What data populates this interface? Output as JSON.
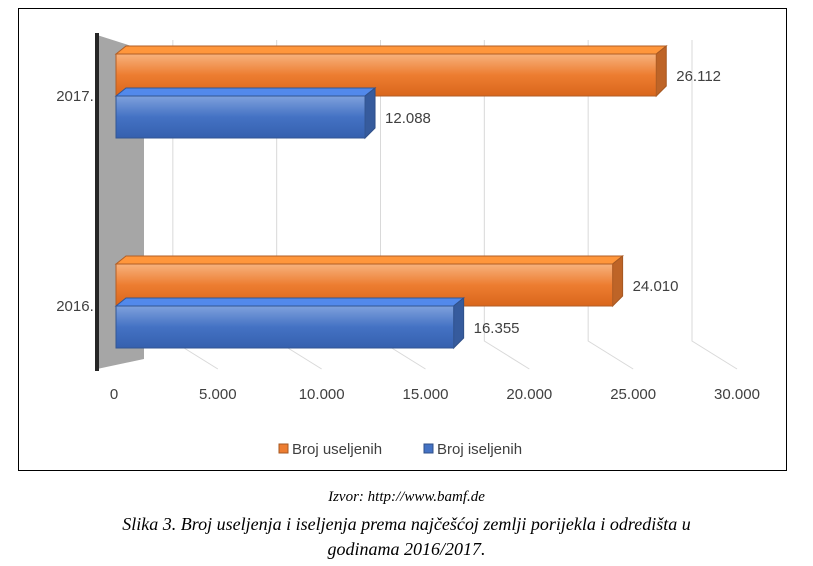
{
  "chart_data": {
    "type": "bar",
    "orientation": "horizontal",
    "style": "3d",
    "categories": [
      "2017.",
      "2016."
    ],
    "series": [
      {
        "name": "Broj useljenih",
        "values": [
          26112,
          24010
        ]
      },
      {
        "name": "Broj iseljenih",
        "values": [
          12088,
          16355
        ]
      }
    ],
    "value_labels": [
      [
        "26.112",
        "24.010"
      ],
      [
        "12.088",
        "16.355"
      ]
    ],
    "xlim": [
      0,
      30000
    ],
    "x_ticks": [
      {
        "value": 0,
        "label": "0"
      },
      {
        "value": 5000,
        "label": "5.000"
      },
      {
        "value": 10000,
        "label": "10.000"
      },
      {
        "value": 15000,
        "label": "15.000"
      },
      {
        "value": 20000,
        "label": "20.000"
      },
      {
        "value": 25000,
        "label": "25.000"
      },
      {
        "value": 30000,
        "label": "30.000"
      }
    ],
    "legend_position": "bottom",
    "grid": true,
    "colors": {
      "Broj useljenih": "#ED7D31",
      "Broj iseljenih": "#4472C4",
      "wall": "#A6A6A6",
      "axis": "#404040",
      "gridline": "#D9D9D9"
    }
  },
  "figure": {
    "source": "Izvor: http://www.bamf.de",
    "caption_line1": "Slika 3. Broj useljenja i iseljenja prema najčešćoj zemlji porijekla i odredišta u",
    "caption_line2": "godinama 2016/2017."
  }
}
